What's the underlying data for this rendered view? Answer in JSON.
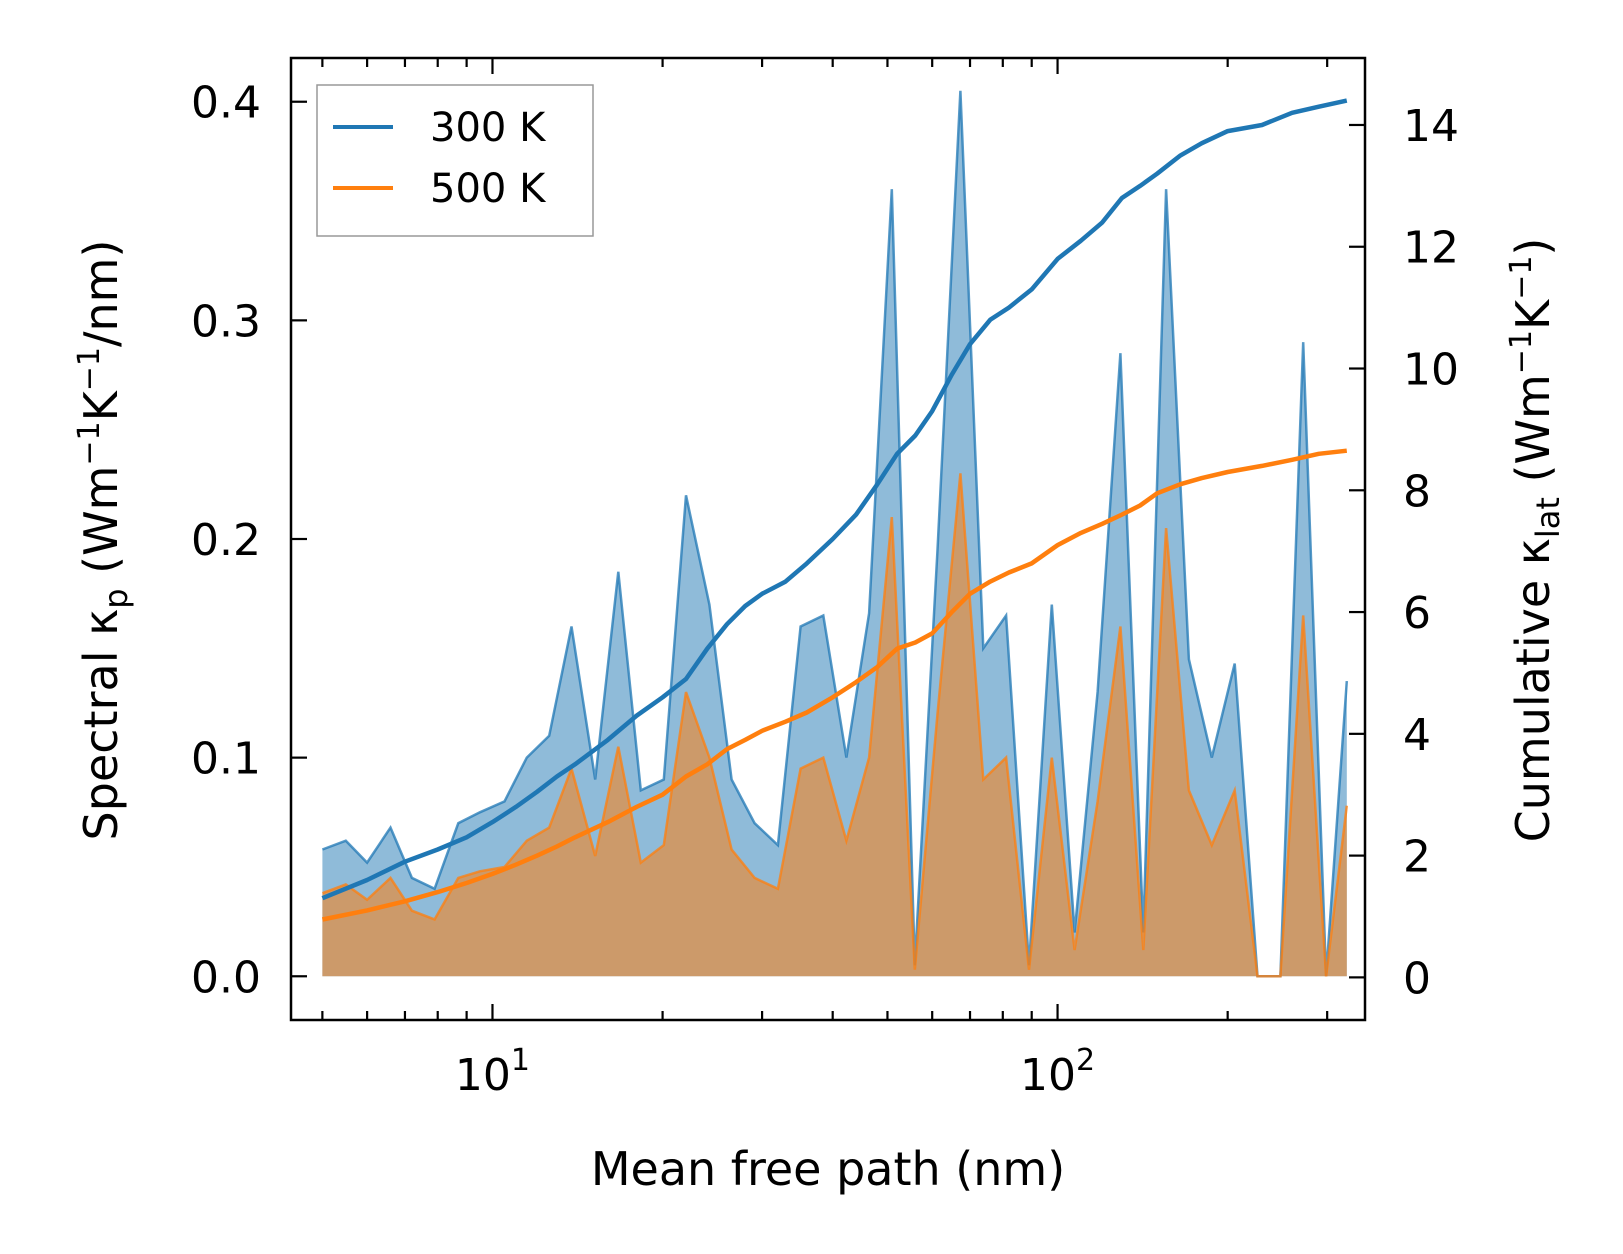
{
  "chart_data": {
    "type": "line",
    "title": "",
    "xlabel": "Mean free path (nm)",
    "ylabel_left": "Spectral κ_p (Wm⁻¹K⁻¹/nm)",
    "ylabel_right": "Cumulative κ_lat (Wm⁻¹K⁻¹)",
    "xscale": "log",
    "xlim": [
      4.4,
      350
    ],
    "ylim_left": [
      -0.02,
      0.42
    ],
    "ylim_right": [
      -0.7,
      15.1
    ],
    "x_major_ticks": [
      10,
      100
    ],
    "x_tick_labels": [
      {
        "base": "10",
        "exp": "1"
      },
      {
        "base": "10",
        "exp": "2"
      }
    ],
    "y_left_ticks": [
      0.0,
      0.1,
      0.2,
      0.3,
      0.4
    ],
    "y_left_tick_labels": [
      "0.0",
      "0.1",
      "0.2",
      "0.3",
      "0.4"
    ],
    "y_right_ticks": [
      0,
      2,
      4,
      6,
      8,
      10,
      12,
      14
    ],
    "y_right_tick_labels": [
      "0",
      "2",
      "4",
      "6",
      "8",
      "10",
      "12",
      "14"
    ],
    "legend": {
      "position": "top-left",
      "entries": [
        {
          "label": "300 K",
          "color": "#1f77b4"
        },
        {
          "label": "500 K",
          "color": "#ff7f0e"
        }
      ]
    },
    "series": [
      {
        "name": "300 K spectral",
        "axis": "left",
        "style": "filled",
        "color": "#1f77b4",
        "x": [
          5.0,
          5.5,
          6.0,
          6.6,
          7.2,
          7.9,
          8.7,
          9.5,
          10.5,
          11.5,
          12.6,
          13.8,
          15.2,
          16.7,
          18.3,
          20.1,
          22.0,
          24.2,
          26.5,
          29.1,
          32.0,
          35.1,
          38.5,
          42.3,
          46.4,
          50.9,
          55.9,
          61.3,
          67.3,
          73.9,
          81.1,
          89.0,
          97.7,
          107.2,
          117.7,
          129.2,
          141.8,
          155.6,
          170.8,
          187.5,
          205.8,
          225.9,
          247.9,
          272.1,
          298.7,
          325.0
        ],
        "y": [
          0.058,
          0.062,
          0.052,
          0.068,
          0.045,
          0.04,
          0.07,
          0.075,
          0.08,
          0.1,
          0.11,
          0.16,
          0.09,
          0.185,
          0.085,
          0.09,
          0.22,
          0.17,
          0.09,
          0.07,
          0.06,
          0.16,
          0.165,
          0.1,
          0.166,
          0.36,
          0.005,
          0.195,
          0.405,
          0.15,
          0.165,
          0.005,
          0.17,
          0.02,
          0.13,
          0.285,
          0.02,
          0.36,
          0.145,
          0.1,
          0.143,
          0.0,
          0.0,
          0.29,
          0.0,
          0.135
        ]
      },
      {
        "name": "500 K spectral",
        "axis": "left",
        "style": "filled",
        "color": "#ff7f0e",
        "x": [
          5.0,
          5.5,
          6.0,
          6.6,
          7.2,
          7.9,
          8.7,
          9.5,
          10.5,
          11.5,
          12.6,
          13.8,
          15.2,
          16.7,
          18.3,
          20.1,
          22.0,
          24.2,
          26.5,
          29.1,
          32.0,
          35.1,
          38.5,
          42.3,
          46.4,
          50.9,
          55.9,
          61.3,
          67.3,
          73.9,
          81.1,
          89.0,
          97.7,
          107.2,
          117.7,
          129.2,
          141.8,
          155.6,
          170.8,
          187.5,
          205.8,
          225.9,
          247.9,
          272.1,
          298.7,
          325.0
        ],
        "y": [
          0.038,
          0.042,
          0.035,
          0.045,
          0.03,
          0.026,
          0.045,
          0.048,
          0.05,
          0.062,
          0.068,
          0.095,
          0.055,
          0.105,
          0.052,
          0.06,
          0.13,
          0.1,
          0.058,
          0.045,
          0.04,
          0.095,
          0.1,
          0.062,
          0.1,
          0.21,
          0.003,
          0.12,
          0.23,
          0.09,
          0.1,
          0.003,
          0.1,
          0.012,
          0.08,
          0.16,
          0.012,
          0.205,
          0.085,
          0.06,
          0.085,
          0.0,
          0.0,
          0.165,
          0.0,
          0.078
        ]
      },
      {
        "name": "300 K",
        "axis": "right",
        "style": "line",
        "color": "#1f77b4",
        "x": [
          5.0,
          6.0,
          7.0,
          8.0,
          9.0,
          10.0,
          11.0,
          12.0,
          13.0,
          14.0,
          16.0,
          18.0,
          20.0,
          22.0,
          24.0,
          26.0,
          28.0,
          30.0,
          33.0,
          36.0,
          40.0,
          44.0,
          48.0,
          52.0,
          56.0,
          60.0,
          65.0,
          70.0,
          76.0,
          82.0,
          90.0,
          100.0,
          110.0,
          120.0,
          130.0,
          140.0,
          150.0,
          165.0,
          180.0,
          200.0,
          230.0,
          260.0,
          290.0,
          325.0
        ],
        "y": [
          1.3,
          1.6,
          1.9,
          2.1,
          2.3,
          2.55,
          2.8,
          3.05,
          3.3,
          3.5,
          3.9,
          4.3,
          4.6,
          4.9,
          5.4,
          5.8,
          6.1,
          6.3,
          6.5,
          6.8,
          7.2,
          7.6,
          8.1,
          8.6,
          8.9,
          9.3,
          9.9,
          10.4,
          10.8,
          11.0,
          11.3,
          11.8,
          12.1,
          12.4,
          12.8,
          13.0,
          13.2,
          13.5,
          13.7,
          13.9,
          14.0,
          14.2,
          14.3,
          14.4
        ]
      },
      {
        "name": "500 K",
        "axis": "right",
        "style": "line",
        "color": "#ff7f0e",
        "x": [
          5.0,
          6.0,
          7.0,
          8.0,
          9.0,
          10.0,
          11.0,
          12.0,
          13.0,
          14.0,
          16.0,
          18.0,
          20.0,
          22.0,
          24.0,
          26.0,
          28.0,
          30.0,
          33.0,
          36.0,
          40.0,
          44.0,
          48.0,
          52.0,
          56.0,
          60.0,
          65.0,
          70.0,
          76.0,
          82.0,
          90.0,
          100.0,
          110.0,
          120.0,
          130.0,
          140.0,
          150.0,
          165.0,
          180.0,
          200.0,
          230.0,
          260.0,
          290.0,
          325.0
        ],
        "y": [
          0.95,
          1.1,
          1.25,
          1.4,
          1.55,
          1.7,
          1.85,
          2.0,
          2.15,
          2.3,
          2.55,
          2.8,
          3.0,
          3.3,
          3.5,
          3.75,
          3.9,
          4.05,
          4.2,
          4.35,
          4.6,
          4.85,
          5.1,
          5.4,
          5.5,
          5.65,
          6.0,
          6.3,
          6.5,
          6.65,
          6.8,
          7.1,
          7.3,
          7.45,
          7.6,
          7.75,
          7.95,
          8.1,
          8.2,
          8.3,
          8.4,
          8.5,
          8.6,
          8.65
        ]
      }
    ]
  }
}
